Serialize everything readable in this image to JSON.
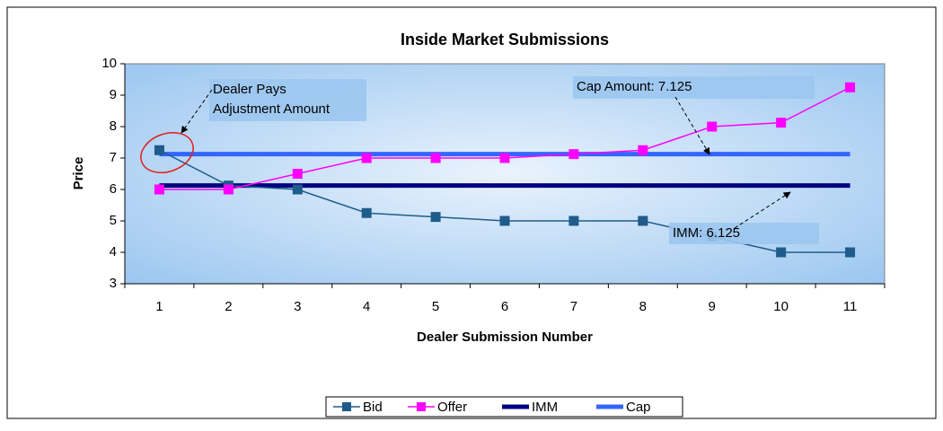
{
  "chart_data": {
    "type": "line",
    "title": "Inside Market Submissions",
    "xlabel": "Dealer Submission Number",
    "ylabel": "Price",
    "categories": [
      "1",
      "2",
      "3",
      "4",
      "5",
      "6",
      "7",
      "8",
      "9",
      "10",
      "11"
    ],
    "series": [
      {
        "name": "Bid",
        "color": "#1f5c8b",
        "marker": "square",
        "values": [
          7.25,
          6.125,
          6,
          5.25,
          5.125,
          5,
          5,
          5,
          4.5,
          4,
          4
        ]
      },
      {
        "name": "Offer",
        "color": "#ff00ff",
        "marker": "square",
        "values": [
          6,
          6,
          6.5,
          7,
          7,
          7,
          7.125,
          7.25,
          8,
          8.125,
          9.25
        ]
      },
      {
        "name": "IMM",
        "color": "#000080",
        "marker": "none",
        "values": [
          6.125,
          6.125,
          6.125,
          6.125,
          6.125,
          6.125,
          6.125,
          6.125,
          6.125,
          6.125,
          6.125
        ]
      },
      {
        "name": "Cap",
        "color": "#3366ff",
        "marker": "none",
        "values": [
          7.125,
          7.125,
          7.125,
          7.125,
          7.125,
          7.125,
          7.125,
          7.125,
          7.125,
          7.125,
          7.125
        ]
      }
    ],
    "ylim": [
      3,
      10
    ],
    "yticks": [
      3,
      4,
      5,
      6,
      7,
      8,
      9,
      10
    ],
    "legend": "bottom",
    "annotations": [
      {
        "lines": [
          "Dealer Pays",
          "Adjustment Amount"
        ]
      },
      {
        "lines": [
          "Cap Amount: 7.125"
        ]
      },
      {
        "lines": [
          "IMM: 6.125"
        ]
      }
    ]
  }
}
